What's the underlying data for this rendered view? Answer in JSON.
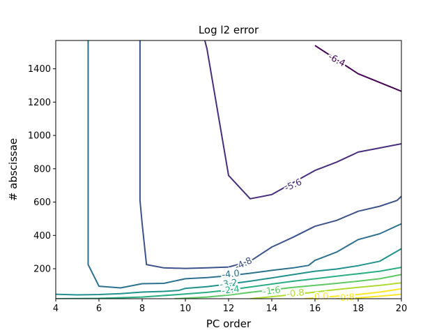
{
  "chart_data": {
    "type": "contour",
    "title": "Log l2 error",
    "xlabel": "PC order",
    "ylabel": "# abscissae",
    "xlim": [
      4,
      20
    ],
    "ylim": [
      20,
      1570
    ],
    "xticks": [
      4,
      6,
      8,
      10,
      12,
      14,
      16,
      18,
      20
    ],
    "yticks": [
      200,
      400,
      600,
      800,
      1000,
      1200,
      1400
    ],
    "grid": false,
    "levels": [
      {
        "value": -6.4,
        "label": "-6.4",
        "color": "#440154",
        "points": [
          [
            16,
            1540
          ],
          [
            18,
            1370
          ],
          [
            20,
            1265
          ]
        ]
      },
      {
        "value": -5.6,
        "label": "-5.6",
        "color": "#472d7b",
        "points": [
          [
            10.9,
            1570
          ],
          [
            11,
            1520
          ],
          [
            12,
            760
          ],
          [
            13,
            620
          ],
          [
            14,
            645
          ],
          [
            16,
            790
          ],
          [
            17,
            840
          ],
          [
            18,
            900
          ],
          [
            19,
            925
          ],
          [
            20,
            950
          ]
        ]
      },
      {
        "value": -4.8,
        "label": "-4.8",
        "color": "#3b528b",
        "points": [
          [
            7.9,
            1570
          ],
          [
            7.9,
            610
          ],
          [
            8,
            470
          ],
          [
            8.2,
            225
          ],
          [
            9,
            205
          ],
          [
            10,
            202
          ],
          [
            11,
            205
          ],
          [
            12,
            210
          ],
          [
            13,
            245
          ],
          [
            14,
            330
          ],
          [
            15,
            390
          ],
          [
            16,
            455
          ],
          [
            17,
            490
          ],
          [
            18,
            545
          ],
          [
            19,
            575
          ],
          [
            19.8,
            610
          ],
          [
            20,
            635
          ]
        ]
      },
      {
        "value": -4.0,
        "label": "-4.0",
        "color": "#2c728e",
        "points": [
          [
            5.5,
            1570
          ],
          [
            5.5,
            225
          ],
          [
            6,
            95
          ],
          [
            7,
            85
          ],
          [
            8,
            110
          ],
          [
            9,
            112
          ],
          [
            10,
            140
          ],
          [
            11,
            147
          ],
          [
            12,
            158
          ],
          [
            13,
            173
          ],
          [
            14,
            190
          ],
          [
            15,
            205
          ],
          [
            15.7,
            220
          ],
          [
            16,
            250
          ],
          [
            17,
            300
          ],
          [
            18,
            375
          ],
          [
            19,
            410
          ],
          [
            20,
            470
          ]
        ]
      },
      {
        "value": -3.2,
        "label": "-3.2",
        "color": "#21918c",
        "points": [
          [
            4,
            47
          ],
          [
            5,
            43
          ],
          [
            6,
            45
          ],
          [
            7,
            50
          ],
          [
            8,
            60
          ],
          [
            9,
            64
          ],
          [
            9.7,
            70
          ],
          [
            10,
            82
          ],
          [
            11,
            92
          ],
          [
            12,
            108
          ],
          [
            13,
            125
          ],
          [
            14,
            145
          ],
          [
            15,
            165
          ],
          [
            16,
            185
          ],
          [
            17,
            198
          ],
          [
            18,
            218
          ],
          [
            19,
            245
          ],
          [
            20,
            320
          ]
        ]
      },
      {
        "value": -2.4,
        "label": "-2.4",
        "color": "#28ae80",
        "points": [
          [
            4,
            20
          ],
          [
            6,
            22
          ],
          [
            8,
            30
          ],
          [
            10,
            48
          ],
          [
            11,
            58
          ],
          [
            12,
            72
          ],
          [
            13,
            90
          ],
          [
            14,
            108
          ],
          [
            15,
            125
          ],
          [
            16,
            140
          ],
          [
            17,
            155
          ],
          [
            18,
            170
          ],
          [
            19,
            185
          ],
          [
            20,
            208
          ]
        ]
      },
      {
        "value": -1.6,
        "label": "-1.6",
        "color": "#5ec962",
        "points": [
          [
            9.5,
            20
          ],
          [
            11,
            30
          ],
          [
            12,
            42
          ],
          [
            13,
            58
          ],
          [
            14,
            73
          ],
          [
            15,
            88
          ],
          [
            16,
            100
          ],
          [
            17,
            112
          ],
          [
            18,
            125
          ],
          [
            19,
            140
          ],
          [
            20,
            165
          ]
        ]
      },
      {
        "value": -0.8,
        "label": "-0.8",
        "color": "#addc30",
        "points": [
          [
            13,
            20
          ],
          [
            14,
            32
          ],
          [
            15,
            45
          ],
          [
            16,
            60
          ],
          [
            17,
            75
          ],
          [
            18,
            88
          ],
          [
            19,
            100
          ],
          [
            20,
            115
          ]
        ]
      },
      {
        "value": 0.0,
        "label": "0.0",
        "color": "#fde725",
        "points": [
          [
            15.5,
            20
          ],
          [
            16,
            25
          ],
          [
            17,
            35
          ],
          [
            18,
            45
          ],
          [
            19,
            60
          ],
          [
            20,
            80
          ]
        ]
      },
      {
        "value": 0.8,
        "label": "0.8",
        "color": "#fde725",
        "points": [
          [
            17,
            20
          ],
          [
            18,
            25
          ],
          [
            19,
            35
          ],
          [
            20,
            47
          ]
        ]
      }
    ],
    "labels": [
      {
        "text": "-6.4",
        "level": 0,
        "x": 17.0,
        "y": 1450
      },
      {
        "text": "-5.6",
        "level": 1,
        "x": 15.0,
        "y": 700
      },
      {
        "text": "-4.8",
        "level": 2,
        "x": 12.7,
        "y": 228
      },
      {
        "text": "-4.0",
        "level": 3,
        "x": 12.1,
        "y": 165
      },
      {
        "text": "-3.2",
        "level": 4,
        "x": 12.0,
        "y": 108
      },
      {
        "text": "-2.4",
        "level": 5,
        "x": 12.1,
        "y": 70
      },
      {
        "text": "-1.6",
        "level": 6,
        "x": 14.0,
        "y": 65
      },
      {
        "text": "-0.8",
        "level": 7,
        "x": 15.1,
        "y": 50
      },
      {
        "text": "0.0",
        "level": 8,
        "x": 16.3,
        "y": 30
      },
      {
        "text": "0.8",
        "level": 9,
        "x": 17.5,
        "y": 24
      }
    ]
  }
}
